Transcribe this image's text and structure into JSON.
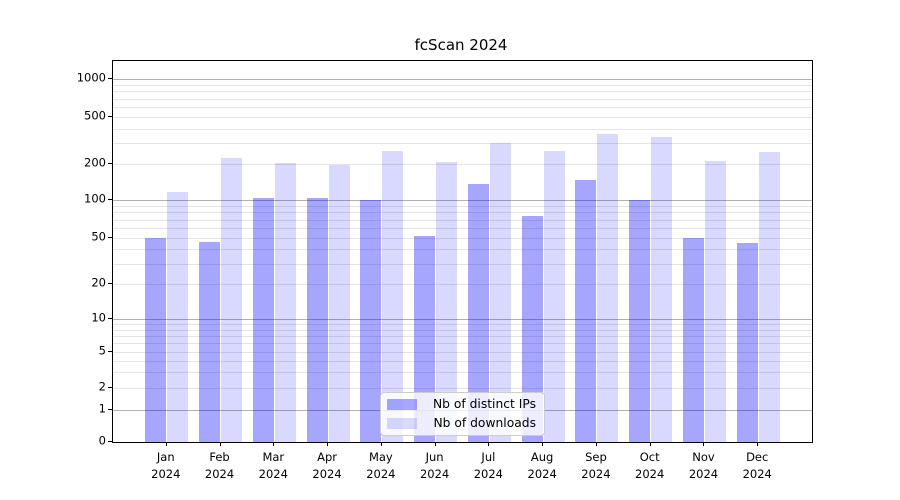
{
  "figure": {
    "title": "fcScan 2024",
    "background": "#ffffff"
  },
  "chart_data": {
    "type": "bar",
    "title": "fcScan 2024",
    "categories": [
      "Jan",
      "Feb",
      "Mar",
      "Apr",
      "May",
      "Jun",
      "Jul",
      "Aug",
      "Sep",
      "Oct",
      "Nov",
      "Dec"
    ],
    "category_year": "2024",
    "series": [
      {
        "name": "Nb of distinct IPs",
        "color": "#0000ff59",
        "values": [
          50,
          46,
          103,
          105,
          101,
          52,
          137,
          75,
          147,
          101,
          50,
          45
        ]
      },
      {
        "name": "Nb of downloads",
        "color": "#0000ff26",
        "values": [
          117,
          226,
          205,
          198,
          261,
          209,
          301,
          258,
          357,
          339,
          212,
          253
        ]
      }
    ],
    "yscale": "symlog",
    "yticks": [
      0,
      1,
      2,
      5,
      10,
      20,
      50,
      100,
      200,
      500,
      1000
    ],
    "ytick_labels": [
      "0",
      "1",
      "2",
      "5",
      "10",
      "20",
      "50",
      "100",
      "200",
      "500",
      "1000"
    ],
    "ylim": [
      0,
      1400
    ],
    "grid": "on",
    "legend_position": "lower center",
    "colors": {
      "bar_distinct_ips": "#a6a6fa",
      "bar_downloads": "#d9d9fd",
      "grid_major": "#b1b1b1",
      "grid_minor": "#e4e4e4",
      "axis": "#000000"
    }
  }
}
